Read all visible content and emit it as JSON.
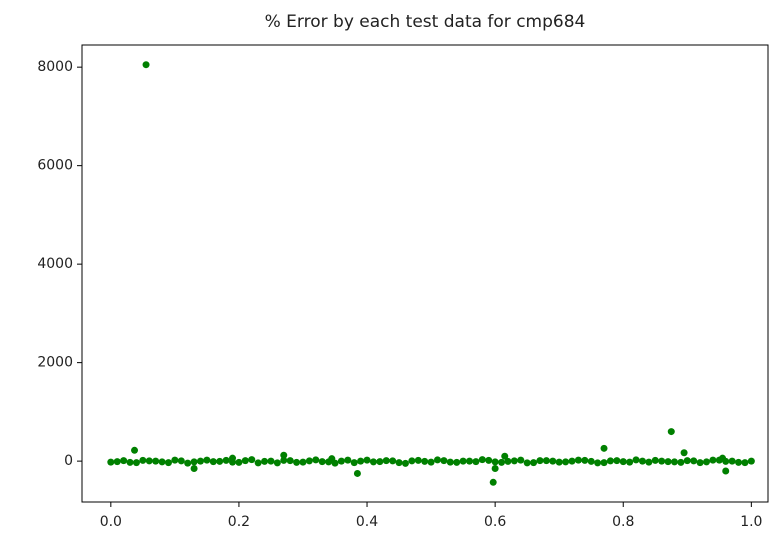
{
  "chart_data": {
    "type": "scatter",
    "title": "% Error by each test data for cmp684",
    "color": "#008000",
    "x": [
      0,
      0.02,
      0.04,
      0.06,
      0.08,
      0.1,
      0.12,
      0.14,
      0.16,
      0.18,
      0.2,
      0.22,
      0.24,
      0.26,
      0.28,
      0.3,
      0.32,
      0.34,
      0.36,
      0.38,
      0.4,
      0.42,
      0.44,
      0.46,
      0.48,
      0.5,
      0.52,
      0.54,
      0.56,
      0.58,
      0.6,
      0.62,
      0.64,
      0.66,
      0.68,
      0.7,
      0.72,
      0.74,
      0.76,
      0.78,
      0.8,
      0.82,
      0.84,
      0.86,
      0.88,
      0.9,
      0.92,
      0.94,
      0.96,
      0.98,
      1,
      0.01,
      0.03,
      0.05,
      0.07,
      0.09,
      0.11,
      0.13,
      0.15,
      0.17,
      0.19,
      0.21,
      0.23,
      0.25,
      0.27,
      0.29,
      0.31,
      0.33,
      0.35,
      0.37,
      0.39,
      0.41,
      0.43,
      0.45,
      0.47,
      0.49,
      0.51,
      0.53,
      0.55,
      0.57,
      0.59,
      0.61,
      0.63,
      0.65,
      0.67,
      0.69,
      0.71,
      0.73,
      0.75,
      0.77,
      0.79,
      0.81,
      0.83,
      0.85,
      0.87,
      0.89,
      0.91,
      0.93,
      0.95,
      0.97,
      0.99,
      0.055,
      0.037,
      0.13,
      0.19,
      0.27,
      0.345,
      0.385,
      0.597,
      0.6,
      0.615,
      0.77,
      0.875,
      0.895,
      0.955,
      0.96
    ],
    "values": [
      -20,
      10,
      -30,
      5,
      -15,
      20,
      -40,
      0,
      -10,
      15,
      -25,
      30,
      -5,
      -35,
      10,
      -20,
      25,
      -15,
      0,
      -30,
      20,
      -10,
      5,
      -45,
      15,
      -20,
      10,
      -25,
      0,
      30,
      -15,
      -5,
      20,
      -30,
      10,
      -20,
      0,
      15,
      -35,
      5,
      -10,
      25,
      -20,
      0,
      -15,
      10,
      -30,
      20,
      -5,
      -25,
      0,
      -10,
      -25,
      15,
      0,
      -30,
      5,
      -15,
      20,
      -5,
      -20,
      10,
      -35,
      0,
      15,
      -25,
      5,
      -10,
      -40,
      20,
      0,
      -15,
      10,
      -30,
      5,
      -5,
      25,
      -20,
      0,
      -10,
      15,
      -25,
      5,
      -35,
      10,
      0,
      -15,
      20,
      -5,
      -30,
      10,
      -20,
      0,
      15,
      -10,
      -25,
      5,
      -15,
      20,
      0,
      -30,
      8050,
      220,
      -150,
      60,
      120,
      50,
      -250,
      -430,
      -150,
      100,
      260,
      600,
      170,
      60,
      -200
    ],
    "xlim": [
      -0.045,
      1.026
    ],
    "ylim": [
      -830,
      8450
    ],
    "xticks": [
      {
        "value": 0,
        "label": "0.0"
      },
      0.2,
      0.4,
      0.6,
      0.8,
      {
        "value": 1,
        "label": "1.0"
      }
    ],
    "yticks": [
      0,
      2000,
      4000,
      6000,
      8000
    ]
  }
}
